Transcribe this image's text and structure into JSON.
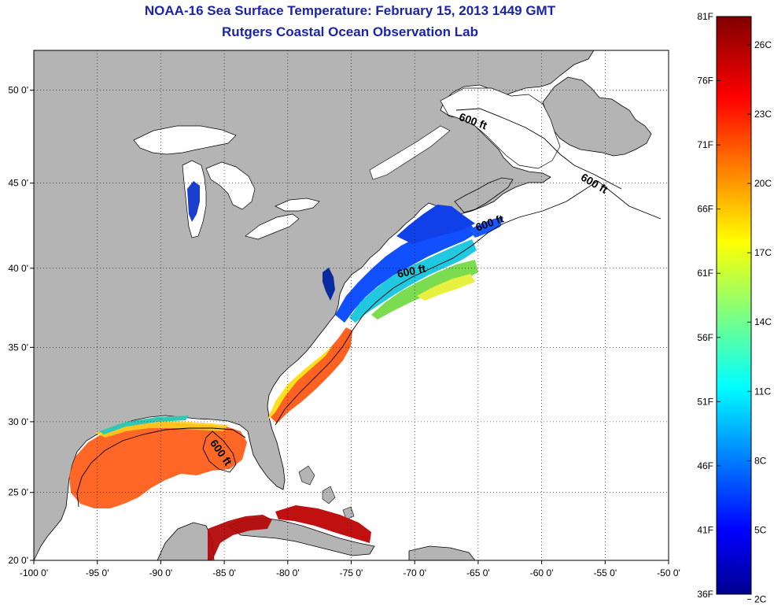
{
  "title": {
    "line1": "NOAA-16 Sea Surface Temperature:  February 15, 2013 1449 GMT",
    "line2": "Rutgers Coastal Ocean Observation Lab"
  },
  "map": {
    "lon_range": [
      -100,
      -50
    ],
    "lat_range": [
      20,
      52
    ],
    "lon_ticks": [
      {
        "value": -100,
        "label": "-100 0'"
      },
      {
        "value": -95,
        "label": "-95 0'"
      },
      {
        "value": -90,
        "label": "-90 0'"
      },
      {
        "value": -85,
        "label": "-85 0'"
      },
      {
        "value": -80,
        "label": "-80 0'"
      },
      {
        "value": -75,
        "label": "-75 0'"
      },
      {
        "value": -70,
        "label": "-70 0'"
      },
      {
        "value": -65,
        "label": "-65 0'"
      },
      {
        "value": -60,
        "label": "-60 0'"
      },
      {
        "value": -55,
        "label": "-55 0'"
      },
      {
        "value": -50,
        "label": "-50 0'"
      }
    ],
    "lat_ticks": [
      {
        "value": 20,
        "label": "20 0'"
      },
      {
        "value": 25,
        "label": "25 0'"
      },
      {
        "value": 30,
        "label": "30 0'"
      },
      {
        "value": 35,
        "label": "35 0'"
      },
      {
        "value": 40,
        "label": "40 0'"
      },
      {
        "value": 45,
        "label": "45 0'"
      },
      {
        "value": 50,
        "label": "50 0'"
      }
    ],
    "grid": "dotted",
    "contour_labels": [
      {
        "text": "600 ft",
        "lon": -65.5,
        "lat": 48.2,
        "rotate": 20
      },
      {
        "text": "600 ft",
        "lon": -56,
        "lat": 44.8,
        "rotate": 30
      },
      {
        "text": "600 ft",
        "lon": -64,
        "lat": 42.5,
        "rotate": -20
      },
      {
        "text": "600 ft",
        "lon": -70.2,
        "lat": 39.6,
        "rotate": -12
      },
      {
        "text": "600 ft",
        "lon": -85.5,
        "lat": 27.7,
        "rotate": 55
      }
    ],
    "colors": {
      "land": "#b4b4b4",
      "ocean_nodata": "#ffffff",
      "lake": "#ffffff"
    }
  },
  "colorbar": {
    "f_labels": [
      {
        "value": 36,
        "label": "36F"
      },
      {
        "value": 41,
        "label": "41F"
      },
      {
        "value": 46,
        "label": "46F"
      },
      {
        "value": 51,
        "label": "51F"
      },
      {
        "value": 56,
        "label": "56F"
      },
      {
        "value": 61,
        "label": "61F"
      },
      {
        "value": 66,
        "label": "66F"
      },
      {
        "value": 71,
        "label": "71F"
      },
      {
        "value": 76,
        "label": "76F"
      },
      {
        "value": 81,
        "label": "81F"
      }
    ],
    "c_labels": [
      {
        "value": 2,
        "label": "2C"
      },
      {
        "value": 5,
        "label": "5C"
      },
      {
        "value": 8,
        "label": "8C"
      },
      {
        "value": 11,
        "label": "11C"
      },
      {
        "value": 14,
        "label": "14C"
      },
      {
        "value": 17,
        "label": "17C"
      },
      {
        "value": 20,
        "label": "20C"
      },
      {
        "value": 23,
        "label": "23C"
      },
      {
        "value": 26,
        "label": "26C"
      }
    ],
    "f_range": [
      36,
      81
    ],
    "colormap": "jet"
  }
}
